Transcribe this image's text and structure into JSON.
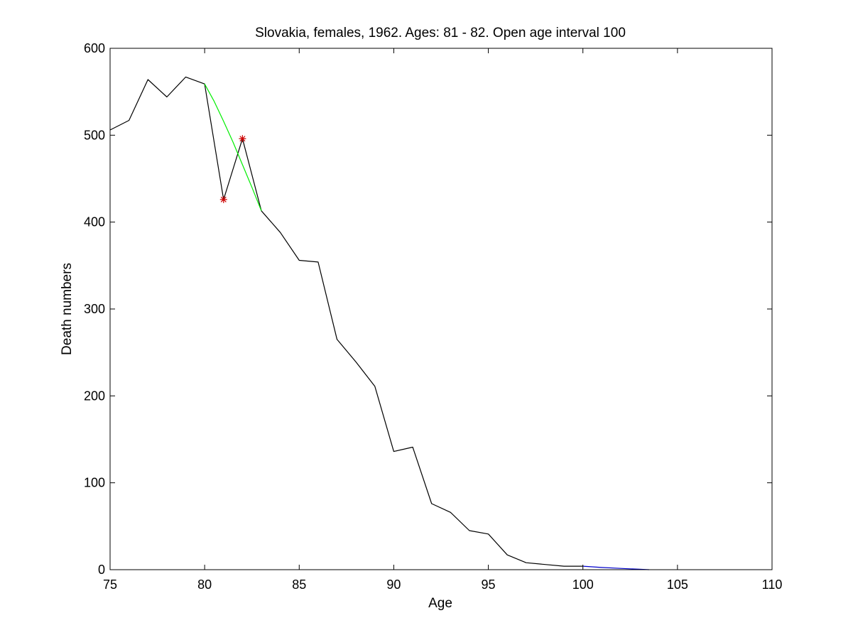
{
  "chart_data": {
    "type": "line",
    "title": "Slovakia, females, 1962. Ages: 81 - 82. Open age interval 100",
    "xlabel": "Age",
    "ylabel": "Death numbers",
    "xlim": [
      75,
      110
    ],
    "ylim": [
      0,
      600
    ],
    "xticks": [
      75,
      80,
      85,
      90,
      95,
      100,
      105,
      110
    ],
    "yticks": [
      0,
      100,
      200,
      300,
      400,
      500,
      600
    ],
    "grid": false,
    "legend": "none",
    "series": [
      {
        "color": "#000000",
        "style": "line",
        "x": [
          75,
          76,
          77,
          78,
          79,
          80,
          81,
          82,
          83,
          84,
          85,
          86,
          87,
          88,
          89,
          90,
          91,
          92,
          93,
          94,
          95,
          96,
          97,
          98,
          99,
          100
        ],
        "y": [
          506,
          517,
          564,
          544,
          567,
          559,
          426,
          496,
          413,
          388,
          356,
          354,
          265,
          239,
          211,
          136,
          141,
          76,
          66,
          45,
          41,
          17,
          8,
          6,
          4,
          4
        ]
      },
      {
        "color": "#00ee00",
        "style": "line",
        "x": [
          80,
          80.5,
          81,
          81.5,
          82,
          82.5,
          83
        ],
        "y": [
          559,
          539,
          516,
          492,
          466,
          440,
          413
        ]
      },
      {
        "color": "#cc0000",
        "style": "markers",
        "marker": "asterisk",
        "x": [
          81,
          82
        ],
        "y": [
          426,
          496
        ]
      },
      {
        "color": "#0000cc",
        "style": "line",
        "x": [
          100,
          101,
          102,
          103,
          103.5
        ],
        "y": [
          4,
          2.5,
          1.5,
          0.5,
          0
        ]
      }
    ]
  }
}
